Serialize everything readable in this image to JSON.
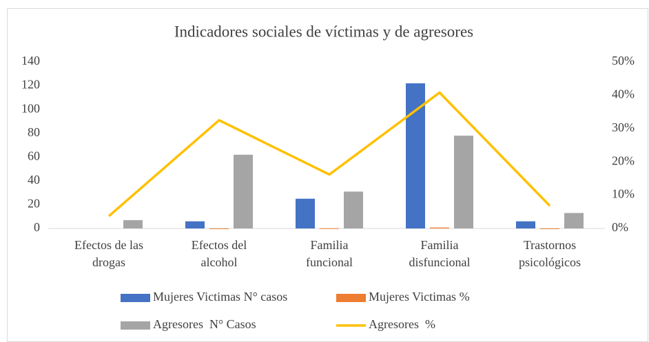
{
  "chart_data": {
    "type": "bar-line",
    "title": "Indicadores sociales de víctimas y de agresores",
    "categories": [
      [
        "Efectos de las",
        "drogas"
      ],
      [
        "Efectos del",
        "alcohol"
      ],
      [
        "Familia",
        "funcional"
      ],
      [
        "Familia",
        "disfuncional"
      ],
      [
        "Trastornos",
        "psicológicos"
      ]
    ],
    "series": [
      {
        "name": "Mujeres Victimas N° casos",
        "type": "bar",
        "color": "#4472c4",
        "values": [
          0,
          6,
          25,
          122,
          6
        ]
      },
      {
        "name": "Mujeres Victimas %",
        "type": "bar",
        "color": "#ed7d31",
        "values": [
          0,
          0.04,
          0.16,
          0.77,
          0.04
        ]
      },
      {
        "name": "Agresores  N° Casos",
        "type": "bar",
        "color": "#a5a5a5",
        "values": [
          7,
          62,
          31,
          78,
          13
        ]
      },
      {
        "name": "Agresores  %",
        "type": "line",
        "axis": "y2",
        "color": "#ffc000",
        "values": [
          3.7,
          32.5,
          16.2,
          40.8,
          6.8
        ]
      }
    ],
    "ylim": [
      0,
      140
    ],
    "yticks": [
      0,
      20,
      40,
      60,
      80,
      100,
      120,
      140
    ],
    "y2lim": [
      0,
      50
    ],
    "y2ticks": [
      {
        "value": 0,
        "label": "0%"
      },
      {
        "value": 10,
        "label": "10%"
      },
      {
        "value": 20,
        "label": "20%"
      },
      {
        "value": 30,
        "label": "30%"
      },
      {
        "value": 40,
        "label": "40%"
      },
      {
        "value": 50,
        "label": "50%"
      }
    ],
    "legend": "bottom"
  }
}
